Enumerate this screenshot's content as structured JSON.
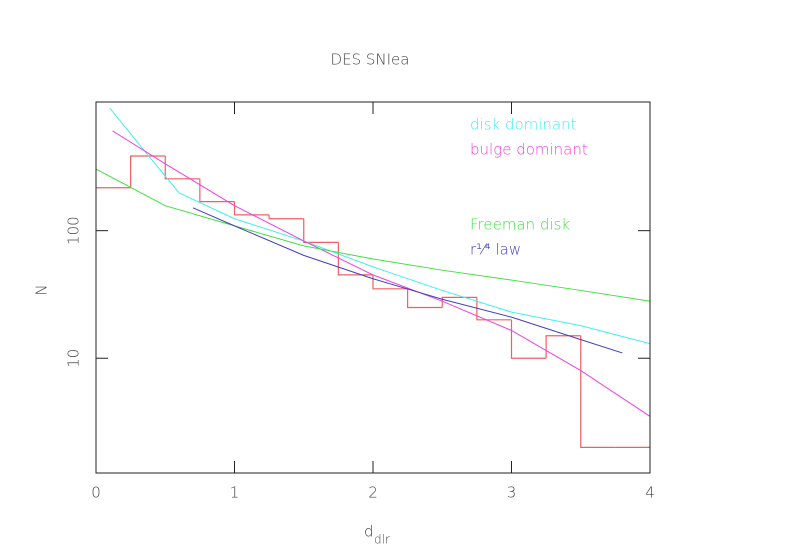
{
  "chart_data": {
    "type": "histogram",
    "title": "DES SNIea",
    "xlabel": "d",
    "xlabel_subscript": "dlr",
    "ylabel": "N",
    "xlim": [
      0,
      4
    ],
    "xticks": [
      0,
      1,
      2,
      3,
      4
    ],
    "ylim": [
      1.26,
      1020
    ],
    "yticks": [
      10,
      100
    ],
    "ylog": true,
    "bins": [
      0,
      0.25,
      0.5,
      0.75,
      1,
      1.25,
      1.5,
      1.75,
      2,
      2.25,
      2.5,
      2.75,
      3,
      3.25,
      3.5,
      3.75,
      4
    ],
    "values": [
      217,
      385,
      255,
      169,
      133,
      124,
      81,
      45,
      35,
      25,
      30,
      20,
      10,
      15,
      2,
      2
    ],
    "color": "#f06060",
    "series": [
      {
        "name": "disk dominant",
        "color": "#40f0f0",
        "x": [
          0.1,
          0.35,
          0.6,
          1,
          1.5,
          2,
          2.5,
          3,
          3.5,
          4
        ],
        "values": [
          912,
          422,
          198,
          124,
          83,
          52,
          34,
          23,
          18,
          13
        ]
      },
      {
        "name": "bulge dominant",
        "color": "#f040e0",
        "x": [
          0.12,
          0.5,
          1,
          1.5,
          2,
          2.5,
          3,
          3.5,
          4
        ],
        "values": [
          605,
          334,
          157,
          83,
          45,
          28,
          16.5,
          8,
          3.5
        ]
      },
      {
        "name": "Freeman disk",
        "color": "#40e040",
        "x": [
          0,
          0.5,
          1,
          1.5,
          2,
          2.5,
          3,
          3.5,
          4
        ],
        "values": [
          304,
          157,
          109,
          76,
          60,
          49,
          41,
          34,
          28
        ]
      },
      {
        "name": "r¹⁄⁴ law",
        "color": "#4040c0",
        "x": [
          0.7,
          1,
          1.5,
          2,
          2.5,
          3,
          3.5,
          3.8
        ],
        "values": [
          151,
          109,
          64,
          42,
          29,
          21,
          14,
          11
        ]
      }
    ]
  }
}
